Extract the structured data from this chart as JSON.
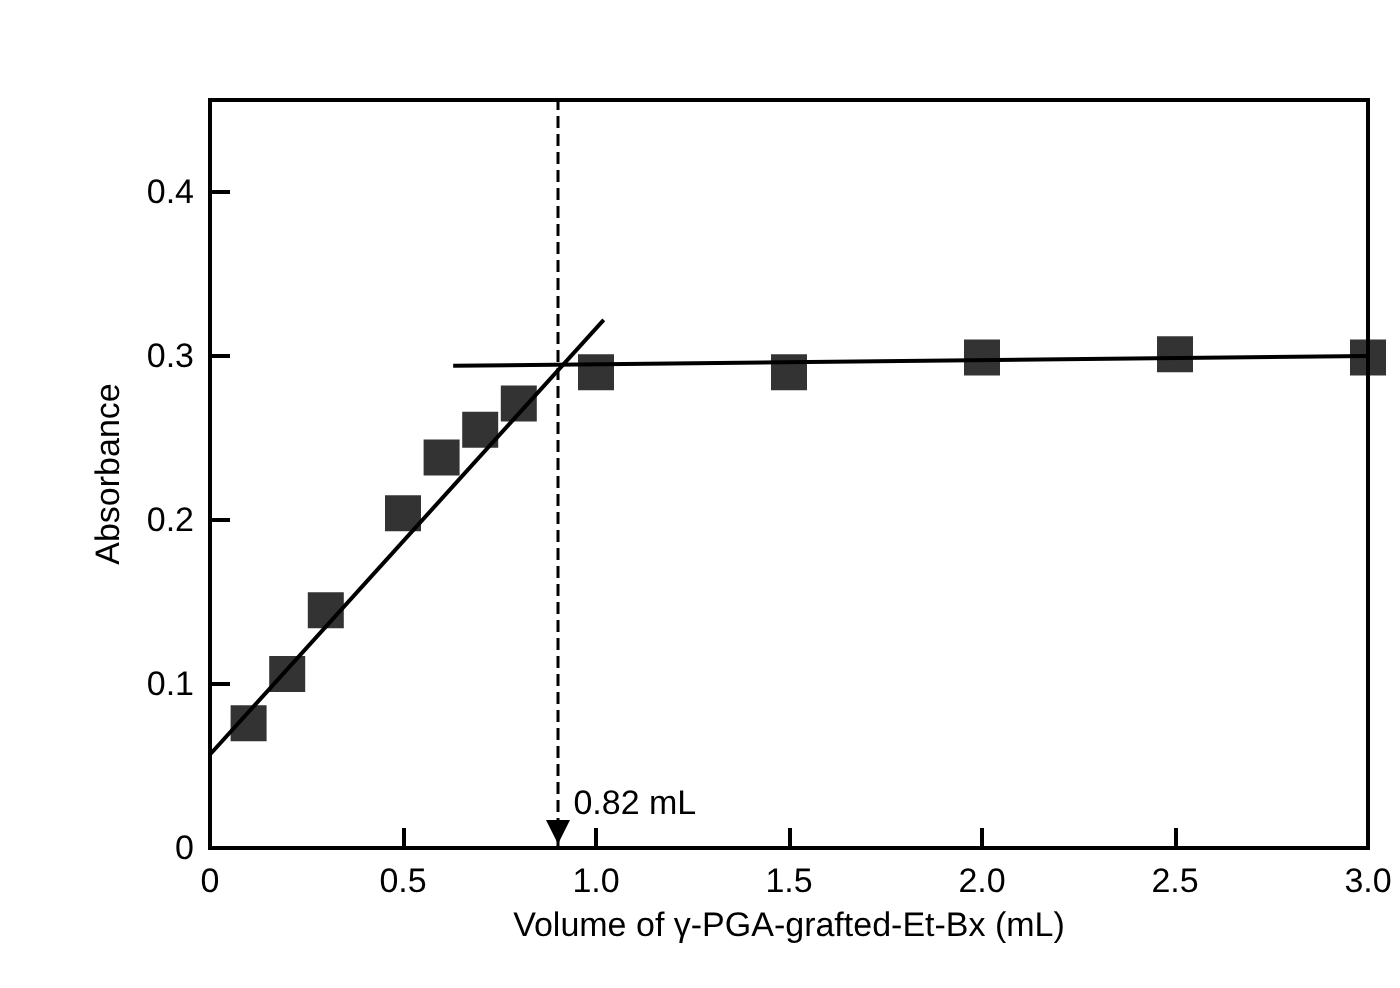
{
  "chart_data": {
    "type": "scatter",
    "xlabel": "Volume of γ-PGA-grafted-Et-Bx (mL)",
    "ylabel": "Absorbance",
    "marker": "square",
    "grid": false,
    "xlim": [
      0,
      3.0
    ],
    "xticks": [
      0,
      0.5,
      {
        "value": 1,
        "label": "1.0"
      },
      1.5,
      {
        "value": 2,
        "label": "2.0"
      },
      2.5,
      {
        "value": 3,
        "label": "3.0"
      }
    ],
    "ylim": [
      0,
      0.456
    ],
    "yticks": [
      0,
      0.1,
      0.2,
      0.3,
      0.4
    ],
    "series": [
      {
        "color": "#000000",
        "x": [
          0.1,
          0.2,
          0.3,
          0.5,
          0.6,
          0.7,
          0.8,
          1.0,
          1.5,
          2.0,
          2.5,
          3.0
        ],
        "values": [
          0.076,
          0.106,
          0.145,
          0.204,
          0.238,
          0.255,
          0.271,
          0.29,
          0.29,
          0.299,
          0.301,
          0.299
        ]
      },
      {
        "type": "line",
        "color": "#000000",
        "line_style": "solid",
        "marker": "none",
        "x": [
          0,
          1.02
        ],
        "values": [
          0.057,
          0.322
        ]
      },
      {
        "type": "line",
        "color": "#000000",
        "line_style": "solid",
        "marker": "none",
        "x": [
          0.63,
          3.0
        ],
        "values": [
          0.294,
          0.3
        ]
      }
    ],
    "ref_lines": [
      {
        "axis": "x",
        "value": 0.9,
        "label": "0.82 mL",
        "color": "#000000",
        "line_style": "dashed"
      }
    ]
  }
}
